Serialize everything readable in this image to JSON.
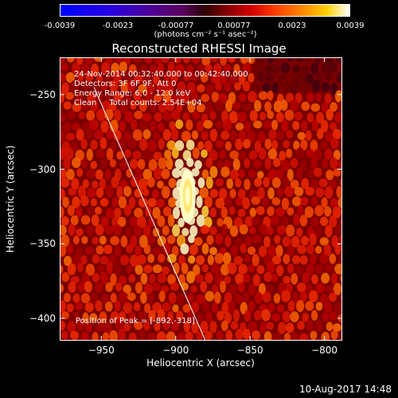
{
  "colorbar": {
    "ticks": [
      "-0.0039",
      "-0.0023",
      "-0.00077",
      "0.00077",
      "0.0023",
      "0.0039"
    ],
    "unit": "(photons cm⁻² s⁻¹ asec⁻²)"
  },
  "title": "Reconstructed RHESSI Image",
  "info": {
    "time": "24-Nov-2014 00:32:40.000 to 00:42:40.000",
    "detectors": "Detectors: 3F 6F 9F, Att 0",
    "energy": "Energy Range: 6.0 - 12.0 keV",
    "method": "Clean     Total counts: 2.54E+04",
    "peak": "Position of Peak = [-892,-318]"
  },
  "chart_data": {
    "type": "heatmap",
    "xlabel": "Heliocentric X (arcsec)",
    "ylabel": "Heliocentric Y (arcsec)",
    "xlim": [
      -978,
      -788
    ],
    "ylim": [
      -415,
      -225
    ],
    "xticks": [
      -950,
      -900,
      -850,
      -800
    ],
    "yticks": [
      -250,
      -300,
      -350,
      -400
    ],
    "peak": [
      -892,
      -318
    ],
    "limb_line": [
      [
        -955,
        -245
      ],
      [
        -880,
        -415
      ]
    ]
  },
  "xticklabels": [
    "−950",
    "−900",
    "−850",
    "−800"
  ],
  "yticklabels": [
    "−250",
    "−300",
    "−350",
    "−400"
  ],
  "timestamp": "10-Aug-2017 14:48"
}
